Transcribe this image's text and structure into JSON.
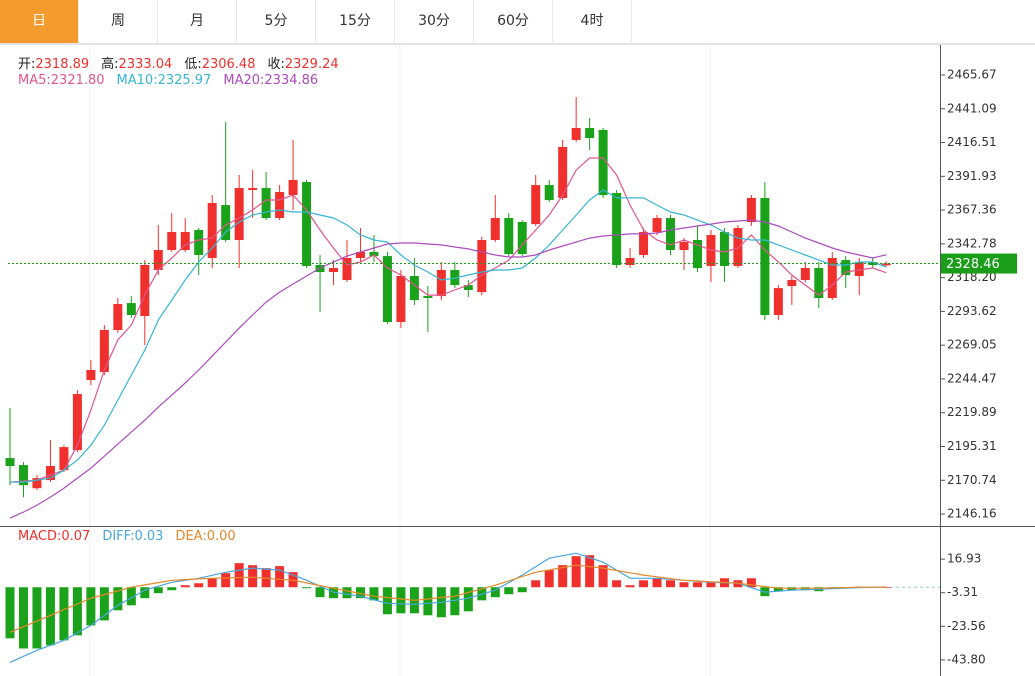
{
  "tabs": [
    "日",
    "周",
    "月",
    "5分",
    "15分",
    "30分",
    "60分",
    "4时"
  ],
  "active_tab": 0,
  "chart_data": [
    {
      "type": "candlestick",
      "ohlc": [
        {
          "label": "开:",
          "value": "2318.89"
        },
        {
          "label": "高:",
          "value": "2333.04"
        },
        {
          "label": "低:",
          "value": "2306.48"
        },
        {
          "label": "收:",
          "value": "2329.24"
        }
      ],
      "legend_separator": ":",
      "up_color": "#f0302c",
      "down_color": "#1aa21a",
      "open": [
        2186.9,
        2181.8,
        2165,
        2170.9,
        2178.1,
        2192.7,
        2243.7,
        2249.5,
        2280.1,
        2299.7,
        2290.3,
        2323.8,
        2338.3,
        2338.3,
        2352.9,
        2332.5,
        2371,
        2345.6,
        2382,
        2383.4,
        2361.6,
        2378.3,
        2387.8,
        2327.4,
        2322.3,
        2316.5,
        2332.5,
        2336.9,
        2333.9,
        2285.9,
        2319.4,
        2304.8,
        2304.8,
        2323.8,
        2312.8,
        2307.7,
        2345.6,
        2361.6,
        2358.7,
        2357.2,
        2385.6,
        2376.2,
        2418.4,
        2427.1,
        2425.7,
        2379.8,
        2327.4,
        2334.7,
        2351.4,
        2361.6,
        2338.3,
        2345.6,
        2326.7,
        2351.4,
        2326.7,
        2358.7,
        2376.2,
        2291,
        2312.1,
        2316.5,
        2325.2,
        2303.4,
        2331,
        2319.4,
        2329.6,
        2327.2
      ],
      "high": [
        2223.3,
        2184,
        2174.5,
        2200,
        2196.3,
        2236.4,
        2258.2,
        2283.7,
        2303.4,
        2304.8,
        2331,
        2356.5,
        2365.2,
        2361.6,
        2354.3,
        2378.3,
        2431.5,
        2392.9,
        2396.5,
        2395.1,
        2385.6,
        2418.4,
        2389.3,
        2334.7,
        2331,
        2345.6,
        2354.3,
        2349.2,
        2336.9,
        2323.8,
        2332.5,
        2312.1,
        2329.6,
        2329.6,
        2316.5,
        2347.8,
        2378.3,
        2365.2,
        2360.1,
        2392.9,
        2389.3,
        2418.4,
        2449.7,
        2434.4,
        2427.1,
        2382,
        2339.8,
        2354.3,
        2363.8,
        2363.8,
        2347,
        2356.5,
        2352.9,
        2354.3,
        2356.5,
        2378.3,
        2387.8,
        2312.8,
        2319.4,
        2329.6,
        2329.6,
        2336.9,
        2333.9,
        2332.5,
        2333.2,
        2330
      ],
      "low": [
        2167.2,
        2158.5,
        2163.6,
        2169.4,
        2176.7,
        2191.2,
        2240,
        2247.3,
        2277.9,
        2288.8,
        2269.1,
        2320.1,
        2336.9,
        2336.9,
        2320.1,
        2325.2,
        2344.1,
        2325.2,
        2361.6,
        2360.1,
        2360.1,
        2367.4,
        2325.2,
        2293.2,
        2312.8,
        2315,
        2329.6,
        2329.6,
        2284.4,
        2281.5,
        2298.3,
        2278.6,
        2301.9,
        2310.6,
        2304.1,
        2305.5,
        2344.1,
        2333.9,
        2333.9,
        2355.8,
        2373.2,
        2374.7,
        2416.9,
        2411.1,
        2376.2,
        2325.2,
        2325.2,
        2332.5,
        2349.2,
        2334.7,
        2323.8,
        2322.3,
        2315,
        2315,
        2325.2,
        2355.8,
        2287.3,
        2287.3,
        2298.3,
        2315,
        2296.1,
        2301.9,
        2310.6,
        2305.5,
        2325.2,
        2326
      ],
      "close": [
        2181.1,
        2167.2,
        2172.3,
        2181.1,
        2194.9,
        2233.5,
        2251,
        2280.1,
        2299,
        2291,
        2327.4,
        2338.3,
        2351.4,
        2351.4,
        2334.7,
        2372.5,
        2345.6,
        2383.4,
        2383.4,
        2361.6,
        2380.5,
        2389.3,
        2326.7,
        2322.3,
        2325.2,
        2332.5,
        2336.9,
        2333.9,
        2285.9,
        2319.4,
        2301.9,
        2303.4,
        2323.8,
        2312.8,
        2309.2,
        2345.6,
        2361.6,
        2335.4,
        2335.4,
        2385.6,
        2374.7,
        2413.3,
        2427.1,
        2419.8,
        2378.3,
        2327.4,
        2332.5,
        2351.4,
        2361.6,
        2338.3,
        2344.1,
        2325.2,
        2349.2,
        2326.7,
        2354.3,
        2376.2,
        2291,
        2310.6,
        2316.5,
        2325.2,
        2303.4,
        2332.5,
        2320.1,
        2329.6,
        2327.4,
        2328.46
      ],
      "series": [
        {
          "name": "MA5",
          "color": "#e2568e",
          "legend_value": "2321.80",
          "values": [
            2169.4,
            2170.1,
            2170.9,
            2174.5,
            2178.1,
            2196.3,
            2221.8,
            2251,
            2272.8,
            2283.7,
            2305.5,
            2323.8,
            2332.5,
            2342,
            2345.6,
            2347,
            2356.5,
            2361.6,
            2367.4,
            2374.7,
            2374.7,
            2378.3,
            2367.4,
            2352.9,
            2339.8,
            2327.4,
            2329.6,
            2334.7,
            2325.2,
            2320.1,
            2312.8,
            2305.5,
            2305.5,
            2309.2,
            2312.8,
            2320.1,
            2325.2,
            2331,
            2342,
            2352.9,
            2363.8,
            2378.3,
            2396.5,
            2405.3,
            2405.3,
            2392.9,
            2371,
            2352.9,
            2345.6,
            2342,
            2345.6,
            2342,
            2338.3,
            2336.9,
            2339.8,
            2349.2,
            2338.3,
            2329.6,
            2320.1,
            2312.8,
            2305.5,
            2312.8,
            2322.3,
            2323.8,
            2325.2,
            2321.8
          ]
        },
        {
          "name": "MA10",
          "color": "#36b6d3",
          "legend_value": "2325.97",
          "values": [
            2169.4,
            2169.4,
            2170.9,
            2172.3,
            2178.1,
            2185.4,
            2196.3,
            2210.9,
            2229.1,
            2247.3,
            2265.5,
            2287.3,
            2301.9,
            2316.5,
            2329.6,
            2339.8,
            2351.4,
            2358.7,
            2363.8,
            2366,
            2367.4,
            2366,
            2366,
            2363.8,
            2361.6,
            2356.5,
            2349.2,
            2345.6,
            2344.1,
            2334.7,
            2327.4,
            2322.3,
            2316.5,
            2317.9,
            2320.1,
            2322.3,
            2323.8,
            2323.8,
            2325.2,
            2332.5,
            2342,
            2352.9,
            2363.8,
            2374.7,
            2382,
            2376.2,
            2376.2,
            2376.2,
            2371,
            2366,
            2363.8,
            2360.1,
            2356.5,
            2351.4,
            2347,
            2345.6,
            2345.6,
            2342,
            2338.3,
            2334.7,
            2331,
            2327.4,
            2327.4,
            2329.6,
            2329.6,
            2325.97
          ]
        },
        {
          "name": "MA20",
          "color": "#ac4cbc",
          "legend_value": "2334.86",
          "values": [
            2143.2,
            2147.6,
            2152.7,
            2158.5,
            2165,
            2172.3,
            2179.6,
            2188.3,
            2197.1,
            2205.8,
            2214.5,
            2224,
            2232.7,
            2241.5,
            2251,
            2261.1,
            2271.3,
            2281.5,
            2291,
            2300.4,
            2307.7,
            2313.6,
            2319.4,
            2325.2,
            2329.6,
            2333.9,
            2336.9,
            2339.8,
            2342.7,
            2343.4,
            2343.4,
            2342.7,
            2342,
            2340.5,
            2339.1,
            2336.9,
            2334.7,
            2333.2,
            2333.2,
            2334.7,
            2338.3,
            2341.2,
            2344.1,
            2347,
            2348.5,
            2349.2,
            2350,
            2350,
            2350.7,
            2352.9,
            2354.3,
            2355.8,
            2357.2,
            2358.7,
            2359.4,
            2360.1,
            2358.7,
            2355.8,
            2351.4,
            2347,
            2343.4,
            2339.8,
            2336.9,
            2334.7,
            2332.5,
            2334.86
          ]
        }
      ],
      "ylim": [
        2138.2,
        2487.5
      ],
      "yticks": [
        2465.67,
        2441.09,
        2416.51,
        2391.93,
        2367.36,
        2342.78,
        {
          "value": 2318.2,
          "label": "2318.20"
        },
        2293.62,
        2269.05,
        2244.47,
        2219.89,
        2195.31,
        2170.74,
        2146.16
      ],
      "last_price": 2328.46,
      "last_price_color": "#1a9e1a"
    },
    {
      "type": "macd",
      "legend_separator": ":",
      "bars": {
        "name": "MACD",
        "color": "#f0302c",
        "down_color": "#1aa21a",
        "legend_value": "0.07",
        "values": [
          -30.8,
          -36.9,
          -36.9,
          -35,
          -32,
          -29,
          -23,
          -20,
          -13.9,
          -10.9,
          -6.6,
          -3.6,
          -1.8,
          1.2,
          2.4,
          5.4,
          8.5,
          14.5,
          13.3,
          11.5,
          12.7,
          9.1,
          -0.6,
          -6,
          -6.6,
          -6.6,
          -6.6,
          -7.9,
          -16.3,
          -15.7,
          -15.7,
          -16.9,
          -18.1,
          -16.9,
          -14.5,
          -7.9,
          -6,
          -4.2,
          -3,
          4.2,
          10.3,
          13.3,
          18.7,
          19.3,
          13.3,
          4.2,
          1.2,
          4.2,
          5.4,
          4.2,
          3,
          3,
          3,
          5.4,
          4.2,
          5.4,
          -5.4,
          -2.4,
          -1.8,
          -1.8,
          -2.4,
          -0.6,
          -0.6,
          0.3,
          0.2,
          0.07
        ]
      },
      "series": [
        {
          "name": "DIFF",
          "color": "#47a6df",
          "legend_value": "0.03",
          "values": [
            -45.3,
            -41.6,
            -38,
            -35,
            -32,
            -27.5,
            -23,
            -17,
            -10.9,
            -6.4,
            -1.8,
            0.6,
            3,
            4.2,
            5.4,
            7.2,
            9,
            10.3,
            11.5,
            10.9,
            10.3,
            7.3,
            4.2,
            0.6,
            -3,
            -4.2,
            -5.4,
            -7.6,
            -9.7,
            -10,
            -10.3,
            -9.7,
            -9.1,
            -7.9,
            -6.6,
            -4.2,
            -1.8,
            2.8,
            7.3,
            12.4,
            17.5,
            19,
            20.5,
            17.8,
            15.1,
            10.3,
            5.4,
            5.4,
            5.4,
            4.8,
            4.2,
            3.6,
            3,
            2.7,
            2.4,
            -0.3,
            -3,
            -2.4,
            -1.8,
            -1.5,
            -1.2,
            -0.9,
            -0.6,
            -0.3,
            0,
            0.03
          ]
        },
        {
          "name": "DEA",
          "color": "#e5892a",
          "legend_value": "0.00",
          "values": [
            -27.2,
            -23.8,
            -20.4,
            -17,
            -13.5,
            -10.1,
            -6.6,
            -4.4,
            -2.2,
            0,
            1.4,
            2.8,
            4.2,
            4.6,
            5,
            5.4,
            5.6,
            5.8,
            6,
            5.4,
            4.8,
            4.2,
            2.6,
            1,
            -0.6,
            -2.2,
            -3.8,
            -5.4,
            -6.2,
            -7.1,
            -7.9,
            -7.1,
            -6.2,
            -5.4,
            -3.2,
            -1,
            1.2,
            3.8,
            6.4,
            9,
            10.4,
            11.9,
            13.3,
            12.4,
            11.5,
            10.1,
            8.7,
            7.3,
            6.3,
            5.2,
            4.2,
            3.8,
            3.3,
            2.9,
            2.4,
            1.4,
            0.4,
            -0.6,
            -0.6,
            -0.6,
            -0.6,
            -0.4,
            -0.2,
            0,
            0,
            0
          ]
        }
      ],
      "ylim": [
        -53.5,
        36.3
      ],
      "yticks": [
        16.93,
        -3.31,
        -23.56,
        {
          "value": -43.8,
          "label": "-43.80"
        }
      ]
    }
  ]
}
